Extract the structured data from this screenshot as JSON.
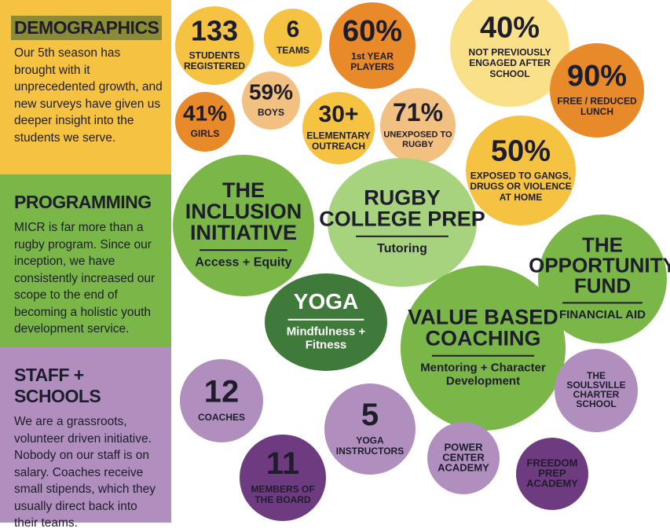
{
  "sections": [
    {
      "heading": "DEMOGRAPHICS",
      "body": "Our 5th season has brought with it unprecedented growth, and new surveys have given us deeper insight into the students we serve."
    },
    {
      "heading": "PROGRAMMING",
      "body": "MICR is far more than a rugby program. Since our inception, we have consistently increased our scope to the end of becoming a holistic youth development service."
    },
    {
      "heading": "STAFF + SCHOOLS",
      "body": "We are a grassroots, volunteer driven initiative. Nobody on our staff is on salary. Coaches receive small stipends, which they usually direct back into their teams."
    }
  ],
  "bubbles": [
    {
      "title": [
        "133"
      ],
      "sub": [
        "STUDENTS",
        "REGISTERED"
      ]
    },
    {
      "title": [
        "6"
      ],
      "sub": [
        "TEAMS"
      ]
    },
    {
      "title": [
        "60%"
      ],
      "sub": [
        "1st YEAR",
        "PLAYERS"
      ]
    },
    {
      "title": [
        "40%"
      ],
      "sub": [
        "NOT PREVIOUSLY",
        "ENGAGED AFTER",
        "SCHOOL"
      ]
    },
    {
      "title": [
        "41%"
      ],
      "sub": [
        "GIRLS"
      ]
    },
    {
      "title": [
        "59%"
      ],
      "sub": [
        "BOYS"
      ]
    },
    {
      "title": [
        "30+"
      ],
      "sub": [
        "ELEMENTARY",
        "OUTREACH"
      ]
    },
    {
      "title": [
        "71%"
      ],
      "sub": [
        "UNEXPOSED TO",
        "RUGBY"
      ]
    },
    {
      "title": [
        "90%"
      ],
      "sub": [
        "FREE / REDUCED",
        "LUNCH"
      ]
    },
    {
      "title": [
        "50%"
      ],
      "sub": [
        "EXPOSED TO GANGS,",
        "DRUGS OR VIOLENCE",
        "AT HOME"
      ]
    },
    {
      "title": [
        "THE",
        "INCLUSION",
        "INITIATIVE"
      ],
      "sub": [
        "Access + Equity"
      ]
    },
    {
      "title": [
        "RUGBY",
        "COLLEGE PREP"
      ],
      "sub": [
        "Tutoring"
      ]
    },
    {
      "title": [
        "THE",
        "OPPORTUNITY",
        "FUND"
      ],
      "sub": [
        "FINANCIAL AID"
      ]
    },
    {
      "title": [
        "YOGA"
      ],
      "sub": [
        "Mindfulness +",
        "Fitness"
      ]
    },
    {
      "title": [
        "VALUE BASED",
        "COACHING"
      ],
      "sub": [
        "Mentoring + Character",
        "Development"
      ]
    },
    {
      "title": [
        "THE",
        "SOULSVILLE",
        "CHARTER",
        "SCHOOL"
      ],
      "sub": []
    },
    {
      "title": [
        "12"
      ],
      "sub": [
        "COACHES"
      ]
    },
    {
      "title": [
        "5"
      ],
      "sub": [
        "YOGA",
        "INSTRUCTORS"
      ]
    },
    {
      "title": [
        "11"
      ],
      "sub": [
        "MEMBERS OF",
        "THE BOARD"
      ]
    },
    {
      "title": [
        "POWER",
        "CENTER",
        "ACADEMY"
      ],
      "sub": []
    },
    {
      "title": [
        "FREEDOM",
        "PREP",
        "ACADEMY"
      ],
      "sub": []
    }
  ]
}
